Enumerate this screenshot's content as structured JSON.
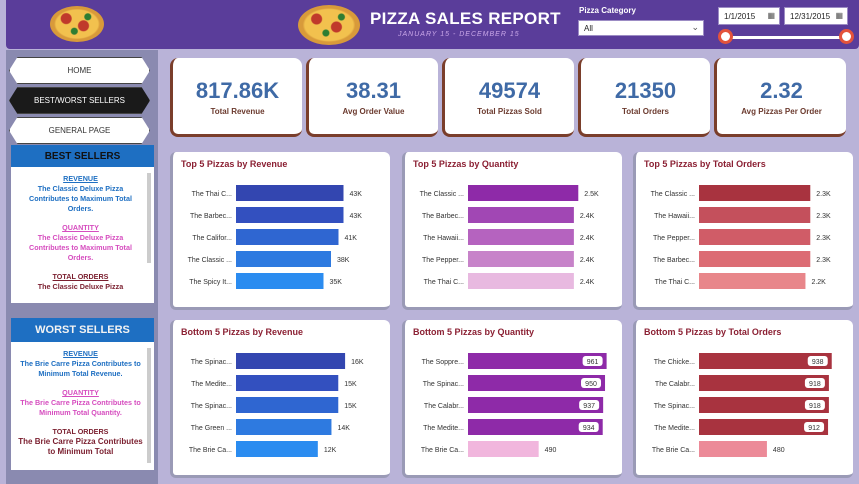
{
  "header": {
    "title": "PIZZA SALES REPORT",
    "subtitle": "JANUARY 15 - DECEMBER 15",
    "category_label": "Pizza Category",
    "category_value": "All",
    "date_start": "1/1/2015",
    "date_end": "12/31/2015"
  },
  "nav": {
    "home": "HOME",
    "best_worst": "BEST/WORST SELLERS",
    "general": "GENERAL PAGE"
  },
  "best_sellers": {
    "title": "BEST SELLERS",
    "revenue_title": "REVENUE",
    "revenue_text": "The Classic Deluxe Pizza Contributes to Maximum Total Orders.",
    "quantity_title": "QUANTITY",
    "quantity_text": "The Classic Deluxe Pizza Contributes to Maximum Total Orders.",
    "orders_title": "TOTAL ORDERS",
    "orders_text": "The Classic Deluxe Pizza"
  },
  "worst_sellers": {
    "title": "WORST SELLERS",
    "revenue_title": "REVENUE",
    "revenue_text": "The Brie Carre Pizza Contributes to Minimum Total Revenue.",
    "quantity_title": "QUANTITY",
    "quantity_text": "The Brie Carre Pizza Contributes to Minimum Total Quantity.",
    "orders_title": "TOTAL ORDERS",
    "orders_text": "The Brie Carre Pizza Contributes to Minimum Total"
  },
  "kpis": [
    {
      "value": "817.86K",
      "label": "Total Revenue"
    },
    {
      "value": "38.31",
      "label": "Avg Order Value"
    },
    {
      "value": "49574",
      "label": "Total Pizzas Sold"
    },
    {
      "value": "21350",
      "label": "Total Orders"
    },
    {
      "value": "2.32",
      "label": "Avg Pizzas Per Order"
    }
  ],
  "chart_data": [
    {
      "type": "bar",
      "title": "Top 5 Pizzas by Revenue",
      "categories": [
        "The Thai C...",
        "The Barbec...",
        "The Califor...",
        "The Classic ...",
        "The Spicy It..."
      ],
      "values": [
        43000,
        43000,
        41000,
        38000,
        35000
      ],
      "data_labels": [
        "43K",
        "43K",
        "41K",
        "38K",
        "35K"
      ],
      "max": 60000,
      "label_style": "outside",
      "colors": [
        "#3346b0",
        "#3350bf",
        "#2f66d1",
        "#2e7ae0",
        "#2b8cf0"
      ]
    },
    {
      "type": "bar",
      "title": "Top 5 Pizzas by Quantity",
      "categories": [
        "The Classic ...",
        "The Barbec...",
        "The Hawaii...",
        "The Pepper...",
        "The Thai C..."
      ],
      "values": [
        2500,
        2400,
        2400,
        2400,
        2400
      ],
      "data_labels": [
        "2.5K",
        "2.4K",
        "2.4K",
        "2.4K",
        "2.4K"
      ],
      "max": 3400,
      "label_style": "outside",
      "colors": [
        "#8e2aa8",
        "#a147b4",
        "#b563bf",
        "#c783c9",
        "#e8b9e0"
      ]
    },
    {
      "type": "bar",
      "title": "Top 5 Pizzas by Total Orders",
      "categories": [
        "The Classic ...",
        "The Hawaii...",
        "The Pepper...",
        "The Barbec...",
        "The Thai C..."
      ],
      "values": [
        2300,
        2300,
        2300,
        2300,
        2200
      ],
      "data_labels": [
        "2.3K",
        "2.3K",
        "2.3K",
        "2.3K",
        "2.2K"
      ],
      "max": 3100,
      "label_style": "outside",
      "colors": [
        "#a8333f",
        "#c4505c",
        "#d05c67",
        "#dc6c74",
        "#e8868a"
      ]
    },
    {
      "type": "bar",
      "title": "Bottom 5 Pizzas by Revenue",
      "categories": [
        "The Spinac...",
        "The Medite...",
        "The Spinac...",
        "The Green ...",
        "The Brie Ca..."
      ],
      "values": [
        16000,
        15000,
        15000,
        14000,
        12000
      ],
      "data_labels": [
        "16K",
        "15K",
        "15K",
        "14K",
        "12K"
      ],
      "max": 22000,
      "label_style": "outside",
      "colors": [
        "#3346b0",
        "#3350bf",
        "#2f66d1",
        "#2e7ae0",
        "#2b8cf0"
      ]
    },
    {
      "type": "bar",
      "title": "Bottom 5 Pizzas by Quantity",
      "categories": [
        "The Soppre...",
        "The Spinac...",
        "The Calabr...",
        "The Medite...",
        "The Brie Ca..."
      ],
      "values": [
        961,
        950,
        937,
        934,
        490
      ],
      "data_labels": [
        "961",
        "950",
        "937",
        "934",
        "490"
      ],
      "max": 1040,
      "label_style": "inside",
      "colors": [
        "#8e2aa8",
        "#8e2aa8",
        "#8e2aa8",
        "#8e2aa8",
        "#f1b6dd"
      ]
    },
    {
      "type": "bar",
      "title": "Bottom 5 Pizzas by Total Orders",
      "categories": [
        "The Chicke...",
        "The Calabr...",
        "The Spinac...",
        "The Medite...",
        "The Brie Ca..."
      ],
      "values": [
        938,
        918,
        918,
        912,
        480
      ],
      "data_labels": [
        "938",
        "918",
        "918",
        "912",
        "480"
      ],
      "max": 1060,
      "label_style": "inside",
      "colors": [
        "#a8333f",
        "#a8333f",
        "#a8333f",
        "#a8333f",
        "#ec8a98"
      ]
    }
  ]
}
